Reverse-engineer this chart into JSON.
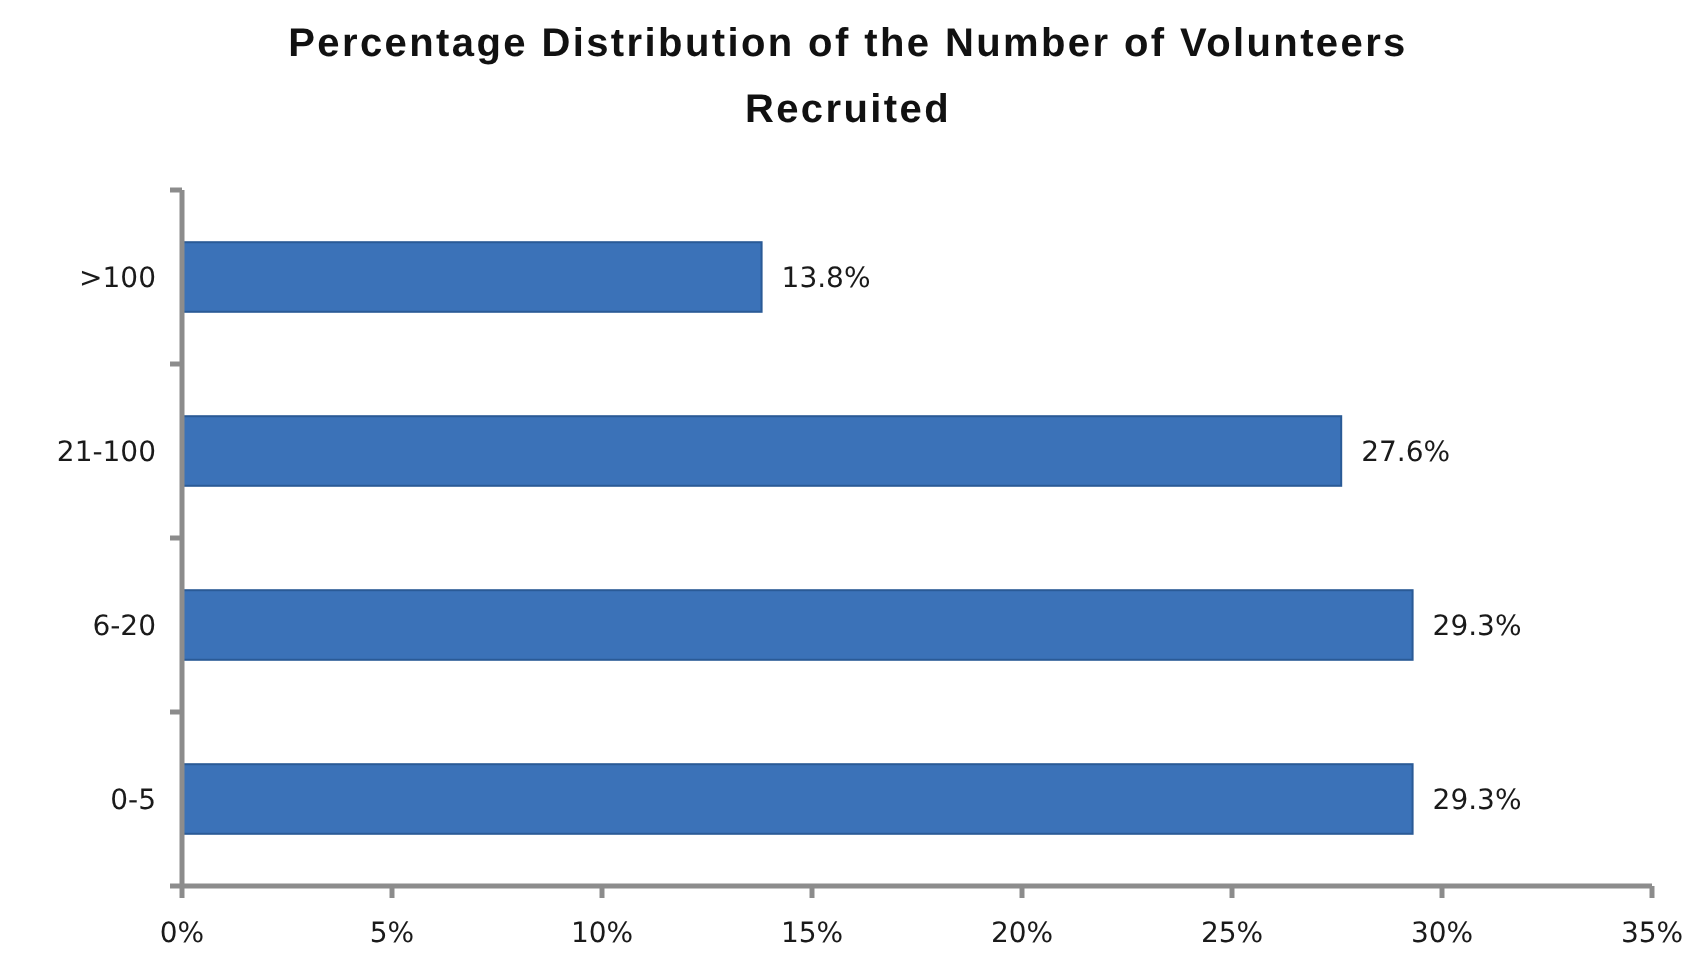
{
  "chart_data": {
    "type": "bar",
    "orientation": "horizontal",
    "title": "Percentage Distribution of the Number of Volunteers\nRecruited",
    "categories": [
      ">100",
      "21-100",
      "6-20",
      "0-5"
    ],
    "values": [
      13.8,
      27.6,
      29.3,
      29.3
    ],
    "color": "#3b72b8",
    "value_labels": [
      "13.8%",
      "27.6%",
      "29.3%",
      "29.3%"
    ],
    "xlim": [
      0,
      35
    ],
    "xticks": [
      {
        "value": 0,
        "label": "0%"
      },
      {
        "value": 5,
        "label": "5%"
      },
      {
        "value": 10,
        "label": "10%"
      },
      {
        "value": 15,
        "label": "15%"
      },
      {
        "value": 20,
        "label": "20%"
      },
      {
        "value": 25,
        "label": "25%"
      },
      {
        "value": 30,
        "label": "30%"
      },
      {
        "value": 35,
        "label": "35%"
      }
    ]
  }
}
